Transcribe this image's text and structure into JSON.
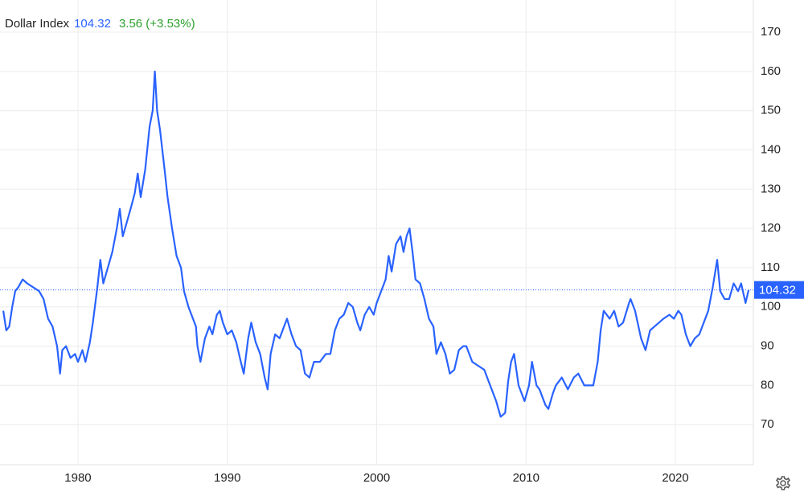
{
  "chart_data": {
    "type": "line",
    "title": "Dollar Index",
    "last": 104.32,
    "change": "3.56 (+3.53%)",
    "xlim": [
      1974.78,
      2025.22
    ],
    "xticks": [
      1980,
      1990,
      2000,
      2010,
      2020
    ],
    "ylim": [
      59.8,
      178.2
    ],
    "yticks": [
      70,
      80,
      90,
      100,
      110,
      120,
      130,
      140,
      150,
      160,
      170
    ],
    "grid": true,
    "series": [
      {
        "name": "Dollar Index",
        "color": "#2962ff",
        "x": [
          1975.0,
          1975.2,
          1975.4,
          1975.6,
          1975.8,
          1976.0,
          1976.3,
          1976.6,
          1977.0,
          1977.4,
          1977.7,
          1978.0,
          1978.3,
          1978.6,
          1978.8,
          1978.95,
          1979.2,
          1979.5,
          1979.8,
          1980.0,
          1980.3,
          1980.5,
          1980.8,
          1981.0,
          1981.3,
          1981.5,
          1981.7,
          1982.0,
          1982.3,
          1982.6,
          1982.8,
          1983.0,
          1983.3,
          1983.6,
          1983.8,
          1984.0,
          1984.2,
          1984.5,
          1984.8,
          1985.0,
          1985.15,
          1985.3,
          1985.5,
          1985.8,
          1986.0,
          1986.3,
          1986.6,
          1986.9,
          1987.1,
          1987.4,
          1987.7,
          1987.9,
          1988.0,
          1988.2,
          1988.5,
          1988.8,
          1989.0,
          1989.3,
          1989.5,
          1989.7,
          1990.0,
          1990.3,
          1990.6,
          1990.9,
          1991.1,
          1991.4,
          1991.6,
          1991.9,
          1992.2,
          1992.5,
          1992.7,
          1992.9,
          1993.2,
          1993.5,
          1993.8,
          1994.0,
          1994.3,
          1994.6,
          1994.9,
          1995.2,
          1995.5,
          1995.8,
          1996.2,
          1996.6,
          1996.9,
          1997.2,
          1997.5,
          1997.8,
          1998.1,
          1998.4,
          1998.7,
          1998.9,
          1999.2,
          1999.5,
          1999.8,
          2000.0,
          2000.3,
          2000.6,
          2000.8,
          2001.0,
          2001.3,
          2001.6,
          2001.8,
          2002.0,
          2002.2,
          2002.4,
          2002.6,
          2002.9,
          2003.2,
          2003.5,
          2003.8,
          2004.0,
          2004.3,
          2004.6,
          2004.9,
          2005.2,
          2005.5,
          2005.8,
          2006.0,
          2006.4,
          2006.8,
          2007.2,
          2007.5,
          2007.8,
          2008.0,
          2008.3,
          2008.6,
          2008.8,
          2009.0,
          2009.2,
          2009.5,
          2009.9,
          2010.2,
          2010.4,
          2010.7,
          2010.9,
          2011.3,
          2011.5,
          2011.8,
          2012.0,
          2012.4,
          2012.8,
          2013.2,
          2013.5,
          2013.9,
          2014.3,
          2014.5,
          2014.8,
          2015.0,
          2015.2,
          2015.6,
          2015.9,
          2016.2,
          2016.5,
          2016.9,
          2017.0,
          2017.3,
          2017.7,
          2018.0,
          2018.3,
          2018.6,
          2018.9,
          2019.2,
          2019.6,
          2019.9,
          2020.2,
          2020.4,
          2020.7,
          2021.0,
          2021.3,
          2021.6,
          2021.9,
          2022.2,
          2022.5,
          2022.8,
          2023.0,
          2023.3,
          2023.6,
          2023.9,
          2024.2,
          2024.4,
          2024.7,
          2024.9
        ],
        "values": [
          99,
          94,
          95,
          100,
          104,
          105,
          107,
          106,
          105,
          104,
          102,
          97,
          95,
          90,
          83,
          89,
          90,
          87,
          88,
          86,
          89,
          86,
          91,
          96,
          105,
          112,
          106,
          110,
          114,
          120,
          125,
          118,
          122,
          126,
          129,
          134,
          128,
          135,
          146,
          150,
          160,
          150,
          145,
          135,
          128,
          120,
          113,
          110,
          104,
          100,
          97,
          95,
          90,
          86,
          92,
          95,
          93,
          98,
          99,
          96,
          93,
          94,
          91,
          86,
          83,
          92,
          96,
          91,
          88,
          82,
          79,
          88,
          93,
          92,
          95,
          97,
          93,
          90,
          89,
          83,
          82,
          86,
          86,
          88,
          88,
          94,
          97,
          98,
          101,
          100,
          96,
          94,
          98,
          100,
          98,
          101,
          104,
          107,
          113,
          109,
          116,
          118,
          114,
          118,
          120,
          114,
          107,
          106,
          102,
          97,
          95,
          88,
          91,
          88,
          83,
          84,
          89,
          90,
          90,
          86,
          85,
          84,
          81,
          78,
          76,
          72,
          73,
          81,
          86,
          88,
          80,
          76,
          80,
          86,
          80,
          79,
          75,
          74,
          78,
          80,
          82,
          79,
          82,
          83,
          80,
          80,
          80,
          86,
          94,
          99,
          97,
          99,
          95,
          96,
          101,
          102,
          99,
          92,
          89,
          94,
          95,
          96,
          97,
          98,
          97,
          99,
          98,
          93,
          90,
          92,
          93,
          96,
          99,
          105,
          112,
          104,
          102,
          102,
          106,
          104,
          106,
          101,
          104.32
        ]
      }
    ]
  }
}
